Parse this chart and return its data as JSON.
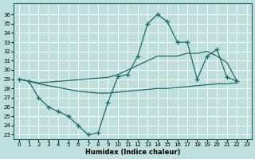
{
  "bg_color": "#bde0de",
  "line_color": "#1a6b62",
  "xlim": [
    -0.5,
    23.5
  ],
  "ylim": [
    22.5,
    37.2
  ],
  "xticks": [
    0,
    1,
    2,
    3,
    4,
    5,
    6,
    7,
    8,
    9,
    10,
    11,
    12,
    13,
    14,
    15,
    16,
    17,
    18,
    19,
    20,
    21,
    22,
    23
  ],
  "yticks": [
    23,
    24,
    25,
    26,
    27,
    28,
    29,
    30,
    31,
    32,
    33,
    34,
    35,
    36
  ],
  "xlabel": "Humidex (Indice chaleur)",
  "x_jagged": [
    0,
    1,
    2,
    3,
    4,
    5,
    6,
    7,
    8,
    9,
    10,
    11,
    12,
    13,
    14,
    15,
    16,
    17,
    18,
    19,
    20,
    21,
    22
  ],
  "y_jagged": [
    29,
    28.8,
    27,
    26,
    25.5,
    25,
    24,
    23,
    23.2,
    26.5,
    29.3,
    29.5,
    31.5,
    35,
    36,
    35.2,
    33,
    33,
    29,
    31.5,
    32.2,
    29.2,
    28.8
  ],
  "x_upper": [
    0,
    1,
    2,
    9,
    10,
    11,
    12,
    13,
    14,
    15,
    16,
    17,
    18,
    19,
    20,
    21,
    22
  ],
  "y_upper": [
    29,
    28.8,
    28.6,
    29.2,
    29.5,
    30,
    30.5,
    31,
    31.5,
    31.5,
    31.5,
    31.8,
    31.8,
    32,
    31.5,
    30.8,
    28.8
  ],
  "x_lower": [
    0,
    1,
    2,
    3,
    4,
    5,
    6,
    7,
    8,
    9,
    10,
    11,
    12,
    13,
    14,
    15,
    16,
    17,
    18,
    19,
    20,
    21,
    22
  ],
  "y_lower": [
    29,
    28.8,
    28.5,
    28.3,
    28.1,
    27.9,
    27.7,
    27.6,
    27.5,
    27.5,
    27.6,
    27.7,
    27.8,
    27.9,
    28.0,
    28.0,
    28.1,
    28.2,
    28.3,
    28.4,
    28.5,
    28.5,
    28.6
  ]
}
